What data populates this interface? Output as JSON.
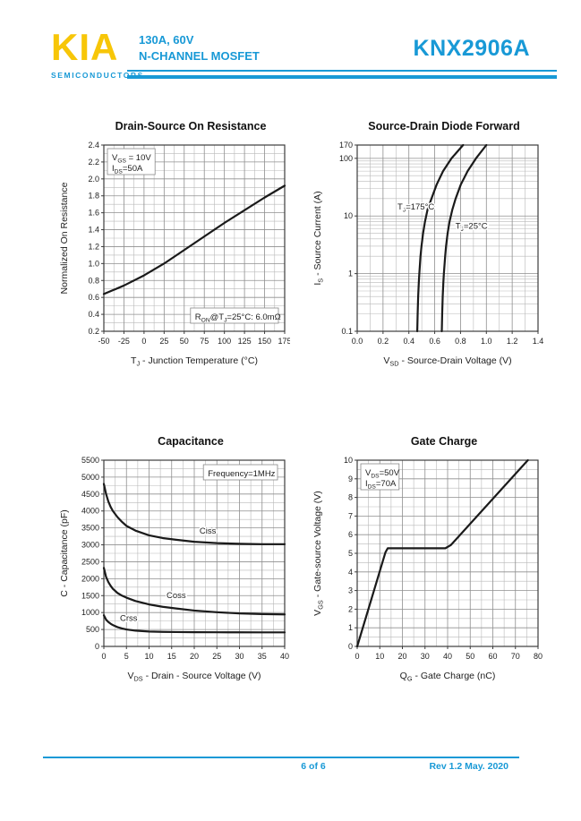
{
  "colors": {
    "accent": "#1899d6",
    "logo": "#f7c608",
    "curve": "#1a1a1a",
    "grid_minor": "#b9b9b9",
    "grid_major": "#8f8f8f",
    "plot_border": "#3c3c3c",
    "chart_text": "#1d1d1d"
  },
  "header": {
    "logo_text": "KIA",
    "logo_sub": "SEMICONDUCTORS",
    "rating": "130A, 60V",
    "device_type": "N-CHANNEL MOSFET",
    "part_number": "KNX2906A"
  },
  "footer": {
    "page_label": "6 of 6",
    "revision": "Rev 1.2 May. 2020"
  },
  "chart_data": [
    {
      "type": "line",
      "title": "Drain-Source On Resistance",
      "xlabel": [
        {
          "t": "T"
        },
        {
          "t": "J",
          "sub": true
        },
        {
          "t": " - Junction Temperature (°C)"
        }
      ],
      "ylabel": [
        {
          "t": "Normalized On Resistance"
        }
      ],
      "x_axis": {
        "scale": "linear",
        "min": -50,
        "max": 175,
        "major_step": 25,
        "minor_step": 12.5,
        "ticks": [
          {
            "v": -50,
            "l": "-50"
          },
          {
            "v": -25,
            "l": "-25"
          },
          {
            "v": 0,
            "l": "0"
          },
          {
            "v": 25,
            "l": "25"
          },
          {
            "v": 50,
            "l": "50"
          },
          {
            "v": 75,
            "l": "75"
          },
          {
            "v": 100,
            "l": "100"
          },
          {
            "v": 125,
            "l": "125"
          },
          {
            "v": 150,
            "l": "150"
          },
          {
            "v": 175,
            "l": "175"
          }
        ]
      },
      "y_axis": {
        "scale": "linear",
        "min": 0.2,
        "max": 2.4,
        "major_step": 0.2,
        "minor_step": 0.1,
        "ticks": [
          {
            "v": 0.2,
            "l": "0.2"
          },
          {
            "v": 0.4,
            "l": "0.4"
          },
          {
            "v": 0.6,
            "l": "0.6"
          },
          {
            "v": 0.8,
            "l": "0.8"
          },
          {
            "v": 1.0,
            "l": "1.0"
          },
          {
            "v": 1.2,
            "l": "1.2"
          },
          {
            "v": 1.4,
            "l": "1.4"
          },
          {
            "v": 1.6,
            "l": "1.6"
          },
          {
            "v": 1.8,
            "l": "1.8"
          },
          {
            "v": 2.0,
            "l": "2.0"
          },
          {
            "v": 2.2,
            "l": "2.2"
          },
          {
            "v": 2.4,
            "l": "2.4"
          }
        ]
      },
      "series": [
        {
          "name": "normalized-on-resistance",
          "x": [
            -50,
            -25,
            0,
            25,
            50,
            75,
            100,
            125,
            150,
            175
          ],
          "y": [
            0.64,
            0.74,
            0.86,
            1.0,
            1.16,
            1.32,
            1.48,
            1.63,
            1.78,
            1.92
          ]
        }
      ],
      "annotations": [
        {
          "pos": "top-left",
          "boxed": true,
          "lines": [
            [
              {
                "t": "V"
              },
              {
                "t": "GS",
                "sub": true
              },
              {
                "t": " = 10V"
              }
            ],
            [
              {
                "t": "I"
              },
              {
                "t": "DS",
                "sub": true
              },
              {
                "t": "=50A"
              }
            ]
          ]
        },
        {
          "pos": "bottom-right",
          "boxed": true,
          "lines": [
            [
              {
                "t": "R"
              },
              {
                "t": "ON",
                "sub": true
              },
              {
                "t": "@T"
              },
              {
                "t": "J",
                "sub": true
              },
              {
                "t": "=25°C: 6.0mΩ"
              }
            ]
          ]
        }
      ],
      "curve_labels": []
    },
    {
      "type": "line",
      "title": "Source-Drain Diode Forward",
      "xlabel": [
        {
          "t": "V"
        },
        {
          "t": "SD",
          "sub": true
        },
        {
          "t": " - Source-Drain Voltage (V)"
        }
      ],
      "ylabel": [
        {
          "t": "I"
        },
        {
          "t": "S",
          "sub": true
        },
        {
          "t": " - Source Current (A)"
        }
      ],
      "x_axis": {
        "scale": "linear",
        "min": 0,
        "max": 1.4,
        "major_step": 0.2,
        "minor_step": 0.1,
        "ticks": [
          {
            "v": 0,
            "l": "0.0"
          },
          {
            "v": 0.2,
            "l": "0.2"
          },
          {
            "v": 0.4,
            "l": "0.4"
          },
          {
            "v": 0.6,
            "l": "0.6"
          },
          {
            "v": 0.8,
            "l": "0.8"
          },
          {
            "v": 1.0,
            "l": "1.0"
          },
          {
            "v": 1.2,
            "l": "1.2"
          },
          {
            "v": 1.4,
            "l": "1.4"
          }
        ]
      },
      "y_axis": {
        "scale": "log",
        "min": 0.1,
        "max": 170,
        "ticks": [
          {
            "v": 170,
            "l": "170"
          },
          {
            "v": 100,
            "l": "100"
          },
          {
            "v": 10,
            "l": "10"
          },
          {
            "v": 1,
            "l": "1"
          },
          {
            "v": 0.1,
            "l": "0.1"
          }
        ]
      },
      "series": [
        {
          "name": "tj-175c",
          "x": [
            0.465,
            0.468,
            0.472,
            0.477,
            0.481,
            0.49,
            0.498,
            0.51,
            0.525,
            0.545,
            0.575,
            0.615,
            0.665,
            0.73,
            0.82
          ],
          "y": [
            0.1,
            0.2,
            0.4,
            0.7,
            1,
            2,
            3,
            5,
            8,
            13,
            20,
            35,
            60,
            100,
            170
          ]
        },
        {
          "name": "tj-25c",
          "x": [
            0.655,
            0.658,
            0.662,
            0.667,
            0.671,
            0.681,
            0.688,
            0.7,
            0.715,
            0.737,
            0.762,
            0.802,
            0.855,
            0.92,
            1.0
          ],
          "y": [
            0.1,
            0.2,
            0.4,
            0.7,
            1,
            2,
            3,
            5,
            8,
            13,
            20,
            35,
            60,
            100,
            170
          ]
        }
      ],
      "annotations": [],
      "curve_labels": [
        {
          "x": 0.455,
          "y": 13,
          "anchor": "middle",
          "segs": [
            {
              "t": "T"
            },
            {
              "t": "J",
              "sub": true
            },
            {
              "t": "=175°C"
            }
          ]
        },
        {
          "x": 0.885,
          "y": 6,
          "anchor": "middle",
          "segs": [
            {
              "t": "T"
            },
            {
              "t": "J",
              "sub": true
            },
            {
              "t": "=25°C"
            }
          ]
        }
      ]
    },
    {
      "type": "line",
      "title": "Capacitance",
      "xlabel": [
        {
          "t": "V"
        },
        {
          "t": "DS",
          "sub": true
        },
        {
          "t": " - Drain - Source Voltage (V)"
        }
      ],
      "ylabel": [
        {
          "t": "C - Capacitance (pF)"
        }
      ],
      "x_axis": {
        "scale": "linear",
        "min": 0,
        "max": 40,
        "major_step": 5,
        "minor_step": 2.5,
        "ticks": [
          {
            "v": 0,
            "l": "0"
          },
          {
            "v": 5,
            "l": "5"
          },
          {
            "v": 10,
            "l": "10"
          },
          {
            "v": 15,
            "l": "15"
          },
          {
            "v": 20,
            "l": "20"
          },
          {
            "v": 25,
            "l": "25"
          },
          {
            "v": 30,
            "l": "30"
          },
          {
            "v": 35,
            "l": "35"
          },
          {
            "v": 40,
            "l": "40"
          }
        ]
      },
      "y_axis": {
        "scale": "linear",
        "min": 0,
        "max": 5500,
        "major_step": 500,
        "minor_step": 250,
        "ticks": [
          {
            "v": 0,
            "l": "0"
          },
          {
            "v": 500,
            "l": "500"
          },
          {
            "v": 1000,
            "l": "1000"
          },
          {
            "v": 1500,
            "l": "1500"
          },
          {
            "v": 2000,
            "l": "2000"
          },
          {
            "v": 2500,
            "l": "2500"
          },
          {
            "v": 3000,
            "l": "3000"
          },
          {
            "v": 3500,
            "l": "3500"
          },
          {
            "v": 4000,
            "l": "4000"
          },
          {
            "v": 4500,
            "l": "4500"
          },
          {
            "v": 5000,
            "l": "5000"
          },
          {
            "v": 5500,
            "l": "5500"
          }
        ]
      },
      "series": [
        {
          "name": "Ciss",
          "x": [
            0,
            0.5,
            1,
            1.5,
            2,
            3,
            4,
            5,
            7,
            10,
            13,
            16,
            20,
            25,
            30,
            35,
            40
          ],
          "y": [
            4800,
            4500,
            4280,
            4120,
            4000,
            3820,
            3680,
            3560,
            3420,
            3280,
            3200,
            3150,
            3090,
            3050,
            3030,
            3020,
            3020
          ]
        },
        {
          "name": "Coss",
          "x": [
            0,
            0.5,
            1,
            1.5,
            2,
            3,
            4,
            5,
            7,
            10,
            13,
            16,
            20,
            25,
            30,
            35,
            40
          ],
          "y": [
            2320,
            2050,
            1900,
            1790,
            1700,
            1580,
            1500,
            1440,
            1340,
            1240,
            1170,
            1120,
            1060,
            1010,
            975,
            955,
            945
          ]
        },
        {
          "name": "Crss",
          "x": [
            0,
            0.5,
            1,
            1.5,
            2,
            3,
            4,
            5,
            7,
            10,
            13,
            16,
            20,
            25,
            30,
            35,
            40
          ],
          "y": [
            920,
            790,
            720,
            670,
            630,
            570,
            530,
            500,
            465,
            440,
            430,
            425,
            420,
            418,
            416,
            415,
            415
          ]
        }
      ],
      "annotations": [
        {
          "pos": "top-right",
          "boxed": true,
          "lines": [
            [
              {
                "t": "Frequency=1MHz"
              }
            ]
          ]
        }
      ],
      "curve_labels": [
        {
          "x": 23,
          "y": 3330,
          "anchor": "middle",
          "segs": [
            {
              "t": "Ciss"
            }
          ]
        },
        {
          "x": 16,
          "y": 1430,
          "anchor": "middle",
          "segs": [
            {
              "t": "Coss"
            }
          ]
        },
        {
          "x": 5.5,
          "y": 760,
          "anchor": "middle",
          "segs": [
            {
              "t": "Crss"
            }
          ]
        }
      ]
    },
    {
      "type": "line",
      "title": "Gate Charge",
      "xlabel": [
        {
          "t": "Q"
        },
        {
          "t": "G",
          "sub": true
        },
        {
          "t": " - Gate Charge (nC)"
        }
      ],
      "ylabel": [
        {
          "t": "V"
        },
        {
          "t": "GS",
          "sub": true
        },
        {
          "t": " - Gate-source Voltage (V)"
        }
      ],
      "x_axis": {
        "scale": "linear",
        "min": 0,
        "max": 80,
        "major_step": 10,
        "minor_step": 5,
        "ticks": [
          {
            "v": 0,
            "l": "0"
          },
          {
            "v": 10,
            "l": "10"
          },
          {
            "v": 20,
            "l": "20"
          },
          {
            "v": 30,
            "l": "30"
          },
          {
            "v": 40,
            "l": "40"
          },
          {
            "v": 50,
            "l": "50"
          },
          {
            "v": 60,
            "l": "60"
          },
          {
            "v": 70,
            "l": "70"
          },
          {
            "v": 80,
            "l": "80"
          }
        ]
      },
      "y_axis": {
        "scale": "linear",
        "min": 0,
        "max": 10,
        "major_step": 1,
        "minor_step": 0.5,
        "ticks": [
          {
            "v": 0,
            "l": "0"
          },
          {
            "v": 1,
            "l": "1"
          },
          {
            "v": 2,
            "l": "2"
          },
          {
            "v": 3,
            "l": "3"
          },
          {
            "v": 4,
            "l": "4"
          },
          {
            "v": 5,
            "l": "5"
          },
          {
            "v": 6,
            "l": "6"
          },
          {
            "v": 7,
            "l": "7"
          },
          {
            "v": 8,
            "l": "8"
          },
          {
            "v": 9,
            "l": "9"
          },
          {
            "v": 10,
            "l": "10"
          }
        ]
      },
      "series": [
        {
          "name": "gate-charge",
          "x": [
            0,
            12.5,
            13.5,
            39,
            41.5,
            75.5
          ],
          "y": [
            0,
            5.05,
            5.27,
            5.27,
            5.45,
            10
          ]
        }
      ],
      "annotations": [
        {
          "pos": "top-left",
          "boxed": true,
          "lines": [
            [
              {
                "t": "V"
              },
              {
                "t": "DS",
                "sub": true
              },
              {
                "t": "=50V"
              }
            ],
            [
              {
                "t": "I"
              },
              {
                "t": "DS",
                "sub": true
              },
              {
                "t": "=70A"
              }
            ]
          ]
        }
      ],
      "curve_labels": []
    }
  ]
}
